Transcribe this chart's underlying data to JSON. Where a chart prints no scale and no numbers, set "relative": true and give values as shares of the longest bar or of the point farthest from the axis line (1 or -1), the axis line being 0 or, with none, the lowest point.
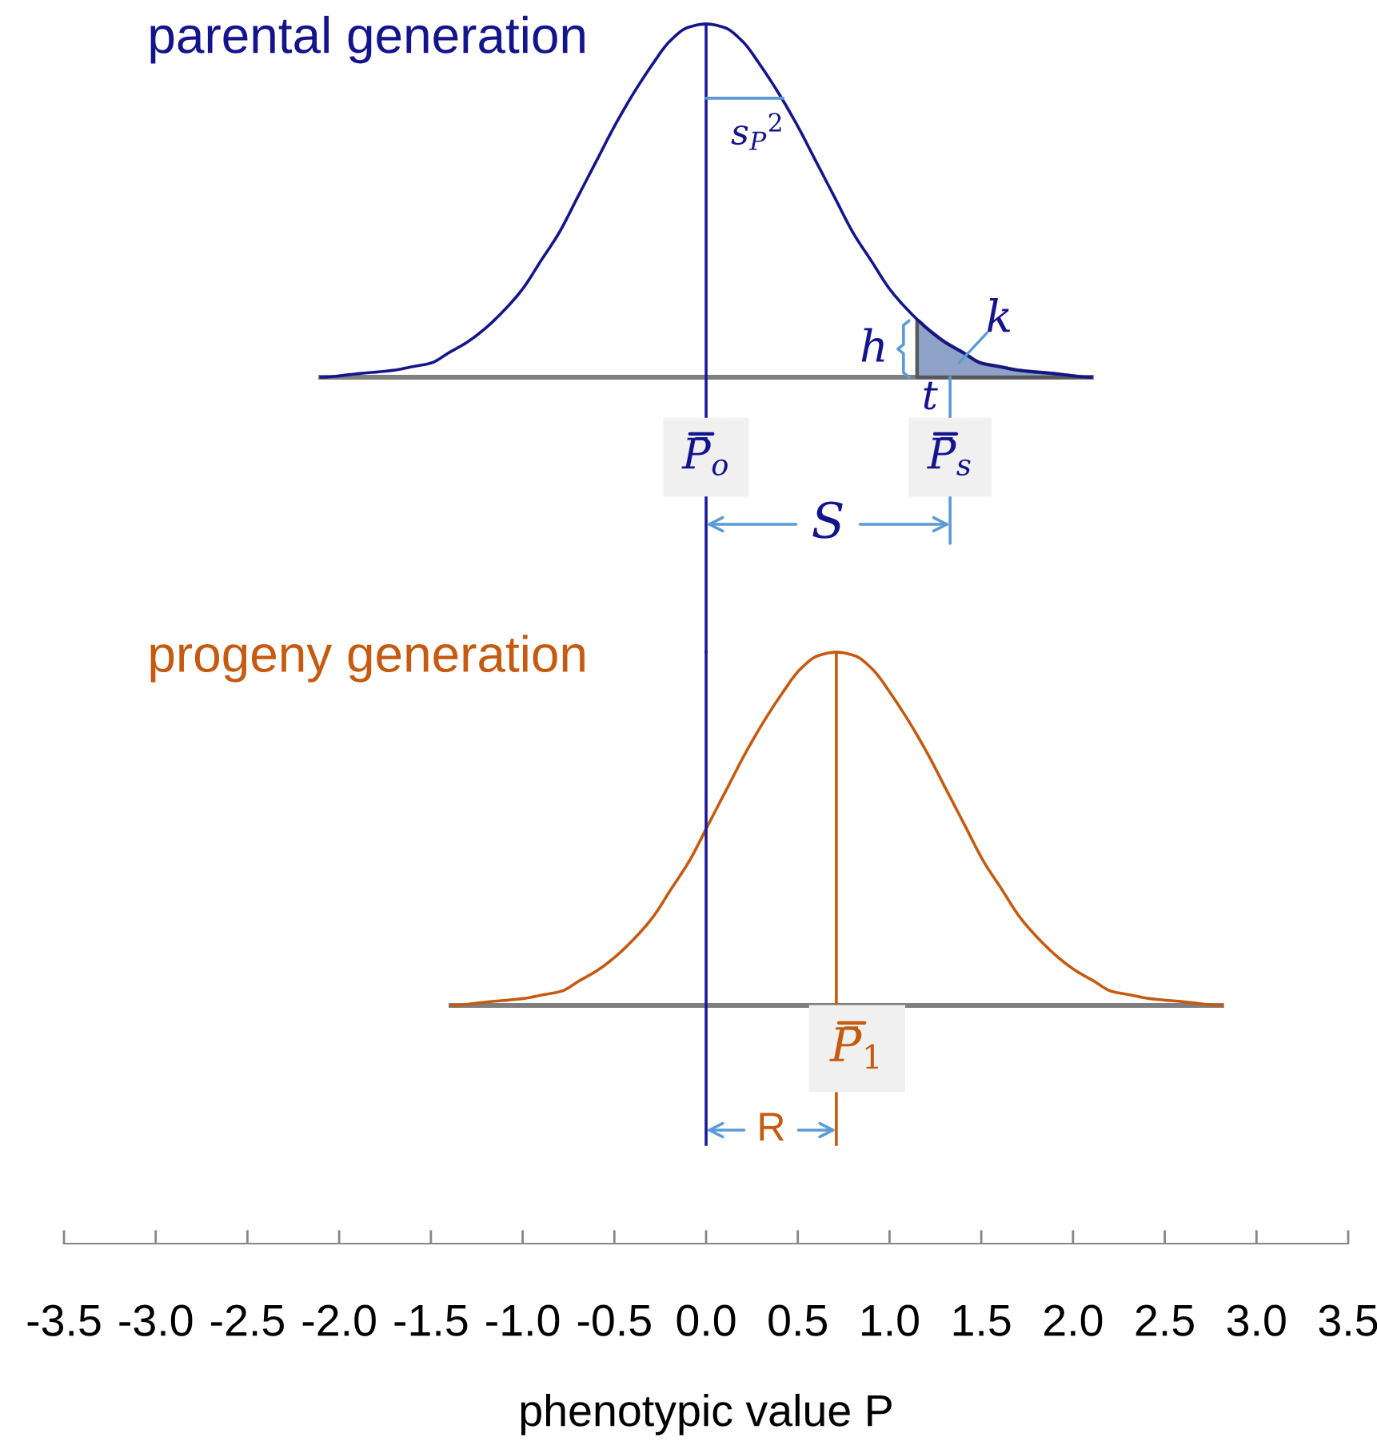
{
  "chart_data": [
    {
      "type": "line",
      "relative": true,
      "xlim": [
        -3.5,
        3.5
      ],
      "tick_labels": false,
      "series": [
        {
          "name": "parental generation",
          "color": "#14148c",
          "x": [
            -2.1,
            -1.9,
            -1.7,
            -1.6,
            -1.5,
            -1.4,
            -1.3,
            -1.2,
            -1.1,
            -1.0,
            -0.9,
            -0.8,
            -0.7,
            -0.6,
            -0.5,
            -0.4,
            -0.3,
            -0.2,
            -0.1,
            0.0,
            0.1,
            0.2,
            0.3,
            0.4,
            0.5,
            0.6,
            0.7,
            0.8,
            0.9,
            1.0,
            1.1,
            1.2,
            1.3,
            1.4,
            1.5,
            1.6,
            1.7,
            1.9,
            2.1
          ],
          "values": [
            0.0,
            0.01,
            0.02,
            0.03,
            0.04,
            0.07,
            0.1,
            0.14,
            0.19,
            0.25,
            0.33,
            0.41,
            0.51,
            0.61,
            0.71,
            0.8,
            0.88,
            0.95,
            0.99,
            1.0,
            0.99,
            0.95,
            0.88,
            0.8,
            0.71,
            0.61,
            0.51,
            0.41,
            0.33,
            0.25,
            0.19,
            0.14,
            0.1,
            0.07,
            0.04,
            0.03,
            0.02,
            0.01,
            0.0
          ]
        },
        {
          "type": "area",
          "color": "#8fa2c8",
          "x": [
            1.15,
            1.2,
            1.3,
            1.4,
            1.5,
            1.6,
            1.7,
            1.9,
            2.1
          ],
          "values": [
            0.16,
            0.14,
            0.1,
            0.07,
            0.04,
            0.03,
            0.02,
            0.01,
            0.0
          ]
        },
        {
          "color": "#7f7f7f",
          "x": [
            -2.1,
            2.1
          ],
          "values": [
            0,
            0
          ]
        }
      ],
      "ref_lines": [
        {
          "axis": "x",
          "value": 0,
          "color": "#1a1a99"
        }
      ],
      "annotations": [
        {
          "text": "s$_{P}$$^{2}$",
          "x": 0.42,
          "y": 0.79
        },
        {
          "text": "h",
          "x": 1.15,
          "y": 0.16
        },
        "k",
        {
          "text": "t",
          "x": 1.15,
          "y": 0
        },
        {
          "text": "P̄$_{o}$",
          "x": 0,
          "y": 0
        },
        {
          "text": "P̄$_{s}$",
          "x": 1.33,
          "y": 0
        },
        "S"
      ]
    },
    {
      "type": "line",
      "relative": true,
      "xlim": [
        -3.5,
        3.5
      ],
      "xticks": [
        -3.5,
        {
          "value": -3,
          "label": "-3.0"
        },
        -2.5,
        {
          "value": -2,
          "label": "-2.0"
        },
        -1.5,
        {
          "value": -1,
          "label": "-1.0"
        },
        -0.5,
        {
          "value": 0,
          "label": "0.0"
        },
        0.5,
        {
          "value": 1,
          "label": "1.0"
        },
        1.5,
        {
          "value": 2,
          "label": "2.0"
        },
        2.5,
        {
          "value": 3,
          "label": "3.0"
        },
        3.5
      ],
      "xlabel": "phenotypic value P",
      "series": [
        {
          "name": "progeny generation",
          "color": "#c55a11",
          "x": [
            -1.39,
            -1.19,
            -0.99,
            -0.89,
            -0.79,
            -0.69,
            -0.59,
            -0.49,
            -0.39,
            -0.29,
            -0.19,
            -0.09,
            0.01,
            0.11,
            0.21,
            0.31,
            0.41,
            0.51,
            0.61,
            0.71,
            0.81,
            0.91,
            1.01,
            1.11,
            1.21,
            1.31,
            1.41,
            1.51,
            1.61,
            1.71,
            1.81,
            1.91,
            2.01,
            2.11,
            2.21,
            2.31,
            2.41,
            2.61,
            2.81
          ],
          "values": [
            0.0,
            0.01,
            0.02,
            0.03,
            0.04,
            0.07,
            0.1,
            0.14,
            0.19,
            0.25,
            0.33,
            0.41,
            0.51,
            0.61,
            0.71,
            0.8,
            0.88,
            0.95,
            0.99,
            1.0,
            0.99,
            0.95,
            0.88,
            0.8,
            0.71,
            0.61,
            0.51,
            0.41,
            0.33,
            0.25,
            0.19,
            0.14,
            0.1,
            0.07,
            0.04,
            0.03,
            0.02,
            0.01,
            0.0
          ]
        },
        {
          "color": "#7f7f7f",
          "x": [
            -1.39,
            2.81
          ],
          "values": [
            0,
            0
          ]
        }
      ],
      "ref_lines": [
        {
          "axis": "x",
          "value": 0,
          "color": "#1a1a99"
        },
        {
          "axis": "x",
          "value": 0.71,
          "color": "#c55a11"
        }
      ],
      "annotations": [
        {
          "text": "P̄$_{1}$",
          "x": 0.71,
          "y": 0
        },
        "R"
      ]
    }
  ]
}
